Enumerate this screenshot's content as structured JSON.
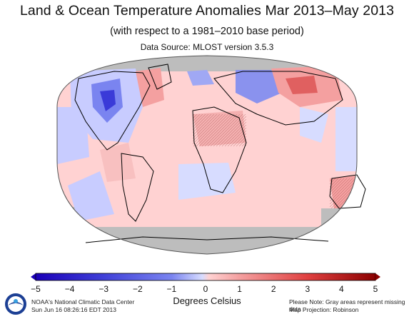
{
  "header": {
    "title": "Land & Ocean Temperature Anomalies Mar 2013–May 2013",
    "subtitle": "(with respect to a 1981–2010 base period)",
    "source": "Data Source: MLOST version 3.5.3"
  },
  "legend": {
    "ticks": [
      "−5",
      "−4",
      "−3",
      "−2",
      "−1",
      "0",
      "1",
      "2",
      "3",
      "4",
      "5"
    ],
    "units": "Degrees Celsius",
    "min": -5,
    "max": 5,
    "colors": {
      "cold_end": "#1a00b8",
      "cold_mid": "#7a84f0",
      "neutral_cold": "#d7dcff",
      "neutral_warm": "#ffd2d2",
      "warm_mid": "#f08080",
      "warm_end": "#8b0000",
      "missing": "#bdbdbd",
      "ocean_outline": "#000000"
    }
  },
  "footer": {
    "credit_line1": "NOAA's National Climatic Data Center",
    "credit_line2": "Sun Jun 16 08:26:16 EDT 2013",
    "note_line1": "Please Note: Gray areas represent missing data",
    "note_line2": "Map Projection: Robinson",
    "logo_icon": "noaa-logo-icon"
  },
  "map": {
    "projection": "Robinson",
    "regions": [
      {
        "label": "central-north-america",
        "anomaly": -2.5
      },
      {
        "label": "western-europe",
        "anomaly": -1.5
      },
      {
        "label": "siberia",
        "anomaly": 2.5
      },
      {
        "label": "north-africa",
        "anomaly": 1.2
      },
      {
        "label": "australia",
        "anomaly": 1.8
      },
      {
        "label": "greenland",
        "anomaly": 1.5
      },
      {
        "label": "eastern-pacific",
        "anomaly": -0.6
      },
      {
        "label": "south-america",
        "anomaly": -0.3
      }
    ]
  }
}
